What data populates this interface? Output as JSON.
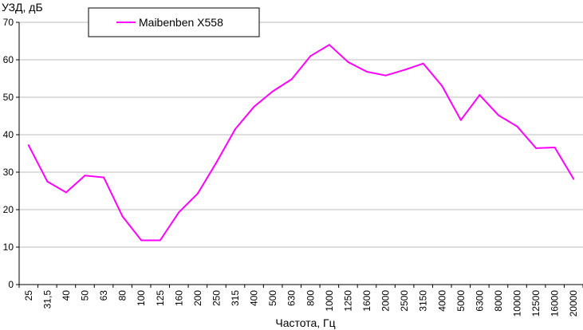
{
  "chart_data": {
    "type": "line",
    "ylabel": "УЗД, дБ",
    "xlabel": "Частота, Гц",
    "ylim": [
      0,
      70
    ],
    "yticks": [
      "0",
      "10",
      "20",
      "30",
      "40",
      "50",
      "60",
      "70"
    ],
    "grid": true,
    "legend_position": "top-left",
    "categories": [
      "25",
      "31,5",
      "40",
      "50",
      "63",
      "80",
      "100",
      "125",
      "160",
      "200",
      "250",
      "315",
      "400",
      "500",
      "630",
      "800",
      "1000",
      "1250",
      "1600",
      "2000",
      "2500",
      "3150",
      "4000",
      "5000",
      "6300",
      "8000",
      "10000",
      "12500",
      "16000",
      "20000"
    ],
    "series": [
      {
        "name": "Maibenben X558",
        "color": "#ff00ff",
        "values": [
          37.2,
          27.5,
          24.6,
          29.1,
          28.6,
          18.2,
          11.8,
          11.8,
          19.3,
          24.3,
          32.6,
          41.5,
          47.5,
          51.6,
          54.8,
          61.0,
          64.0,
          59.4,
          56.8,
          55.8,
          57.3,
          59.0,
          53.0,
          43.9,
          50.6,
          45.2,
          42.2,
          36.4,
          36.6,
          28.2
        ]
      }
    ]
  }
}
